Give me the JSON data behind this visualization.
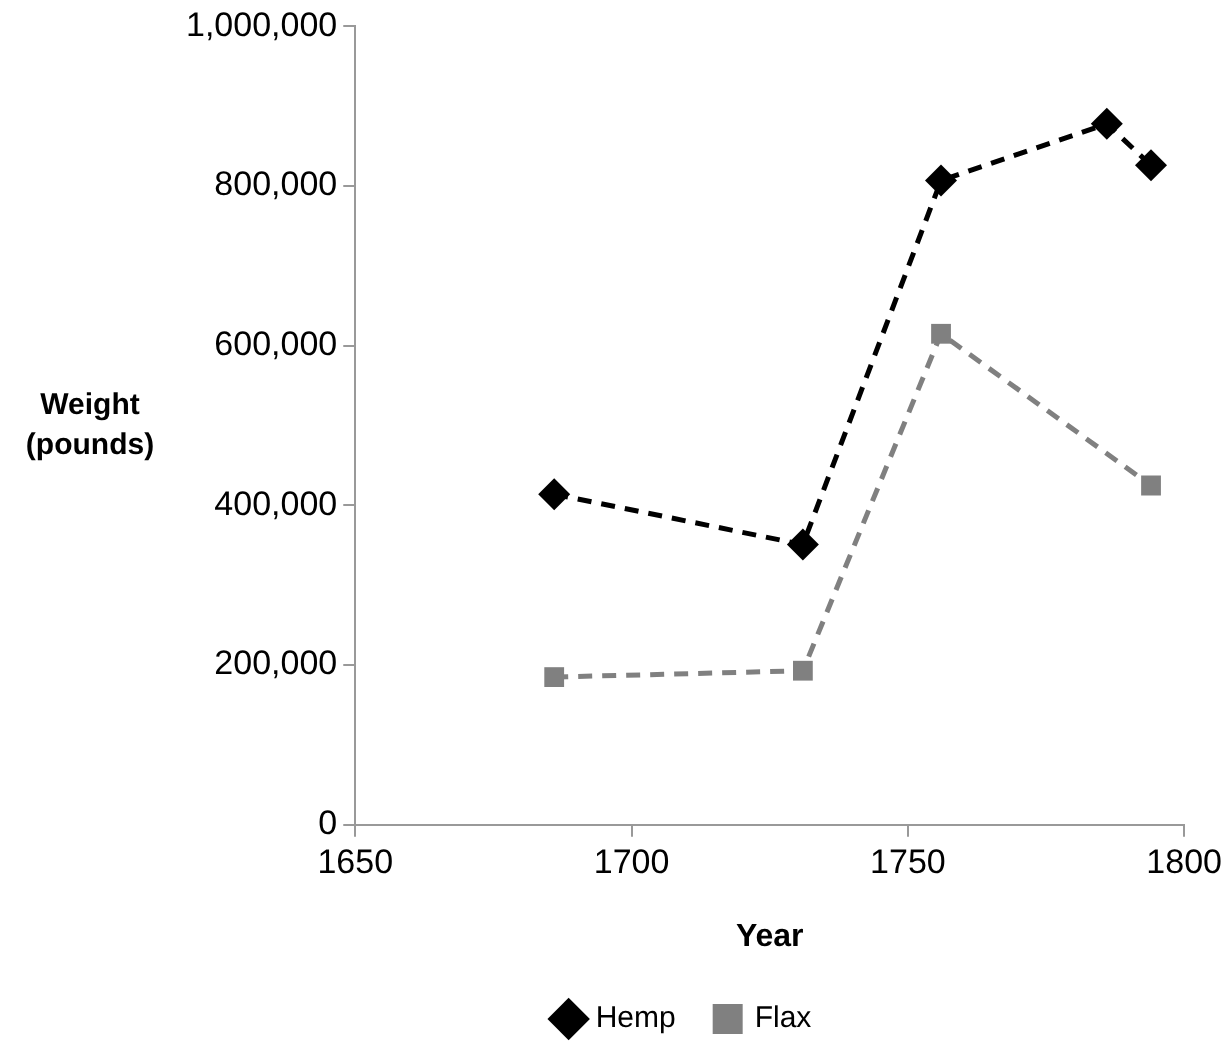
{
  "chart_data": {
    "type": "line",
    "xlabel": "Year",
    "ylabel": "Weight (pounds)",
    "xlim": [
      1650,
      1800
    ],
    "xticks": [
      1650,
      1700,
      1750,
      1800
    ],
    "ylim": [
      0,
      1000000
    ],
    "yticks": [
      {
        "value": 0,
        "label": "0"
      },
      {
        "value": 200000,
        "label": "200,000"
      },
      {
        "value": 400000,
        "label": "400,000"
      },
      {
        "value": 600000,
        "label": "600,000"
      },
      {
        "value": 800000,
        "label": "800,000"
      },
      {
        "value": 1000000,
        "label": "1,000,000"
      }
    ],
    "legend": "bottom",
    "line_style": "dashed",
    "series": [
      {
        "name": "Hemp",
        "color": "#000000",
        "marker": "diamond",
        "x": [
          1686,
          1731,
          1756,
          1786,
          1794
        ],
        "values": [
          414000,
          351000,
          807000,
          878000,
          826000
        ]
      },
      {
        "name": "Flax",
        "color": "#808080",
        "marker": "square",
        "x": [
          1686,
          1731,
          1756,
          1794
        ],
        "values": [
          185000,
          193000,
          615000,
          425000
        ]
      }
    ]
  }
}
